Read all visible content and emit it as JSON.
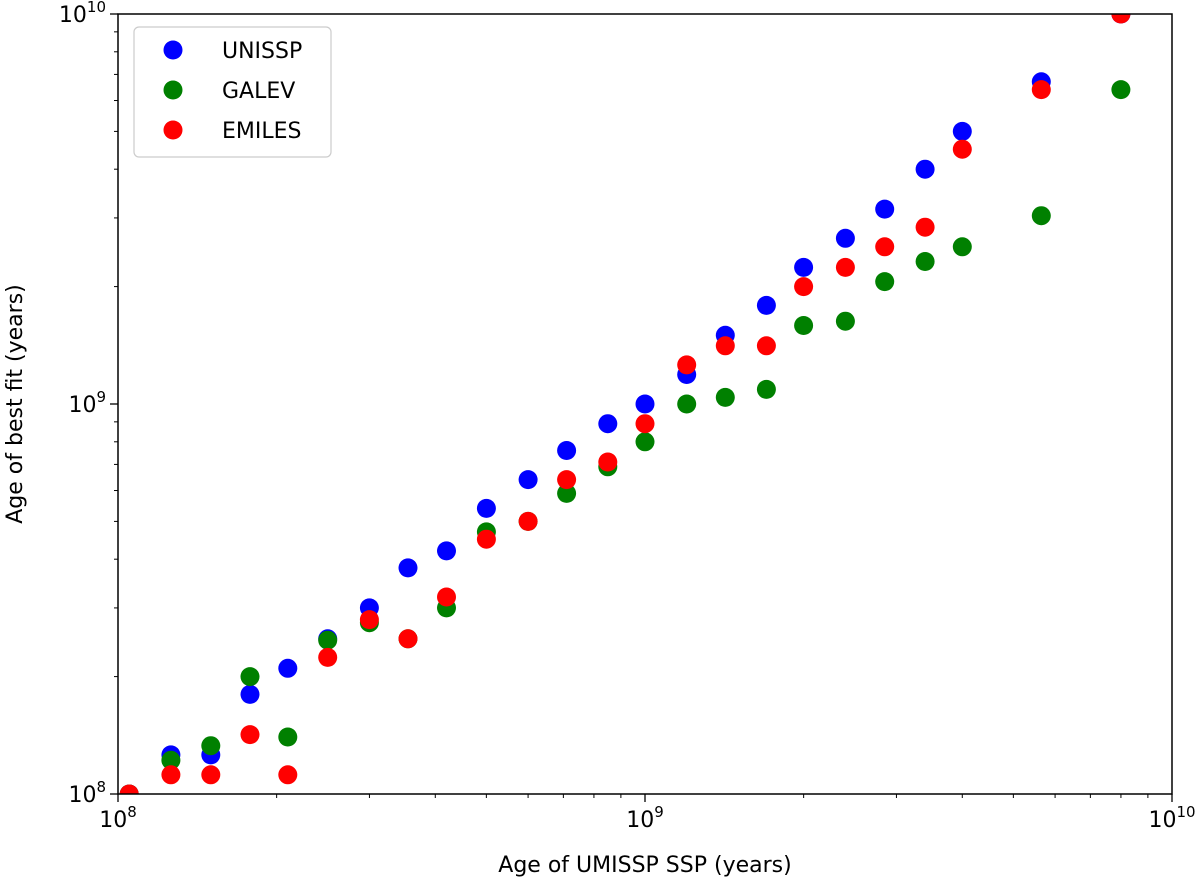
{
  "chart_data": {
    "type": "scatter",
    "title": "",
    "xlabel": "Age of UMISSP SSP (years)",
    "ylabel": "Age of best fit (years)",
    "xscale": "log",
    "yscale": "log",
    "xlim": [
      100000000.0,
      10000000000.0
    ],
    "ylim": [
      100000000.0,
      10000000000.0
    ],
    "grid": false,
    "legend_position": "top-left",
    "x_ticks": [
      {
        "base": "10",
        "exp": "8",
        "value": 100000000.0
      },
      {
        "base": "10",
        "exp": "9",
        "value": 1000000000.0
      },
      {
        "base": "10",
        "exp": "10",
        "value": 10000000000.0
      }
    ],
    "y_ticks": [
      {
        "base": "10",
        "exp": "8",
        "value": 100000000.0
      },
      {
        "base": "10",
        "exp": "9",
        "value": 1000000000.0
      },
      {
        "base": "10",
        "exp": "10",
        "value": 10000000000.0
      }
    ],
    "series": [
      {
        "name": "UNISSP",
        "color": "#0000ff",
        "points": [
          [
            105000000.0,
            100000000.0
          ],
          [
            126000000.0,
            126000000.0
          ],
          [
            150000000.0,
            126000000.0
          ],
          [
            178000000.0,
            180000000.0
          ],
          [
            210000000.0,
            210000000.0
          ],
          [
            250000000.0,
            250000000.0
          ],
          [
            300000000.0,
            300000000.0
          ],
          [
            355000000.0,
            380000000.0
          ],
          [
            420000000.0,
            420000000.0
          ],
          [
            500000000.0,
            540000000.0
          ],
          [
            600000000.0,
            640000000.0
          ],
          [
            710000000.0,
            760000000.0
          ],
          [
            850000000.0,
            890000000.0
          ],
          [
            1000000000.0,
            1000000000.0
          ],
          [
            1200000000.0,
            1190000000.0
          ],
          [
            1420000000.0,
            1500000000.0
          ],
          [
            1700000000.0,
            1790000000.0
          ],
          [
            2000000000.0,
            2240000000.0
          ],
          [
            2400000000.0,
            2660000000.0
          ],
          [
            2850000000.0,
            3160000000.0
          ],
          [
            3400000000.0,
            4000000000.0
          ],
          [
            4000000000.0,
            5000000000.0
          ],
          [
            5650000000.0,
            6700000000.0
          ],
          [
            8000000000.0,
            10000000000.0
          ]
        ]
      },
      {
        "name": "GALEV",
        "color": "#008000",
        "points": [
          [
            105000000.0,
            100000000.0
          ],
          [
            126000000.0,
            122000000.0
          ],
          [
            150000000.0,
            133000000.0
          ],
          [
            178000000.0,
            200000000.0
          ],
          [
            210000000.0,
            140000000.0
          ],
          [
            250000000.0,
            248000000.0
          ],
          [
            300000000.0,
            275000000.0
          ],
          [
            355000000.0,
            250000000.0
          ],
          [
            420000000.0,
            300000000.0
          ],
          [
            500000000.0,
            470000000.0
          ],
          [
            600000000.0,
            500000000.0
          ],
          [
            710000000.0,
            590000000.0
          ],
          [
            850000000.0,
            690000000.0
          ],
          [
            1000000000.0,
            800000000.0
          ],
          [
            1200000000.0,
            1000000000.0
          ],
          [
            1420000000.0,
            1040000000.0
          ],
          [
            1700000000.0,
            1090000000.0
          ],
          [
            2000000000.0,
            1590000000.0
          ],
          [
            2400000000.0,
            1630000000.0
          ],
          [
            2850000000.0,
            2060000000.0
          ],
          [
            3400000000.0,
            2320000000.0
          ],
          [
            4000000000.0,
            2530000000.0
          ],
          [
            5650000000.0,
            3040000000.0
          ],
          [
            8000000000.0,
            6400000000.0
          ]
        ]
      },
      {
        "name": "EMILES",
        "color": "#ff0000",
        "points": [
          [
            105000000.0,
            100000000.0
          ],
          [
            126000000.0,
            112000000.0
          ],
          [
            150000000.0,
            112000000.0
          ],
          [
            178000000.0,
            142000000.0
          ],
          [
            210000000.0,
            112000000.0
          ],
          [
            250000000.0,
            224000000.0
          ],
          [
            300000000.0,
            280000000.0
          ],
          [
            355000000.0,
            250000000.0
          ],
          [
            420000000.0,
            320000000.0
          ],
          [
            500000000.0,
            450000000.0
          ],
          [
            600000000.0,
            500000000.0
          ],
          [
            710000000.0,
            640000000.0
          ],
          [
            850000000.0,
            710000000.0
          ],
          [
            1000000000.0,
            890000000.0
          ],
          [
            1200000000.0,
            1260000000.0
          ],
          [
            1420000000.0,
            1410000000.0
          ],
          [
            1700000000.0,
            1410000000.0
          ],
          [
            2000000000.0,
            2000000000.0
          ],
          [
            2400000000.0,
            2240000000.0
          ],
          [
            2850000000.0,
            2530000000.0
          ],
          [
            3400000000.0,
            2840000000.0
          ],
          [
            4000000000.0,
            4500000000.0
          ],
          [
            5650000000.0,
            6400000000.0
          ],
          [
            8000000000.0,
            10000000000.0
          ]
        ]
      }
    ]
  }
}
